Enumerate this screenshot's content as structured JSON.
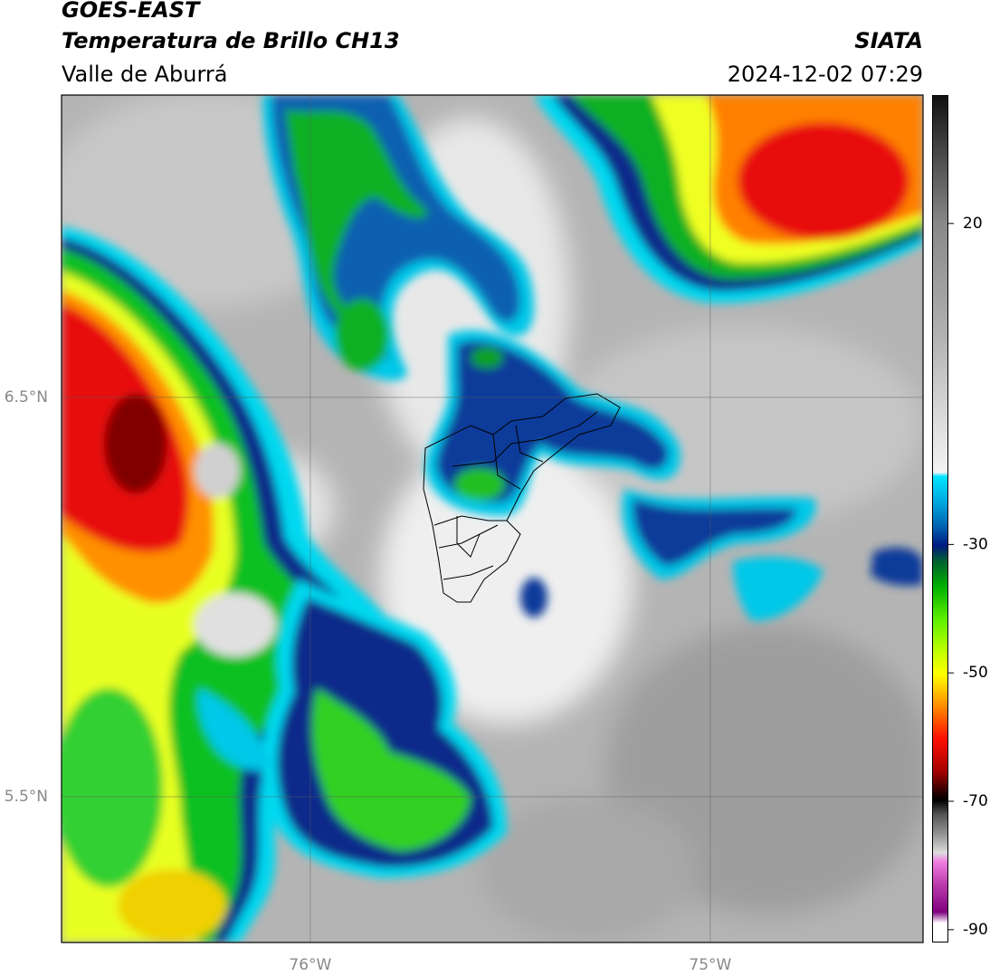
{
  "chart_data": {
    "type": "map",
    "title": "GOES-EAST",
    "subtitle": "Temperatura de Brillo CH13",
    "region": "Valle de Aburrá",
    "source": "SIATA",
    "timestamp": "2024-12-02 07:29",
    "xlim": [
      -76.622,
      -74.468
    ],
    "ylim": [
      5.135,
      7.257
    ],
    "xticks": [
      {
        "value": -76,
        "label": "76°W"
      },
      {
        "value": -75,
        "label": "75°W"
      }
    ],
    "yticks": [
      {
        "value": 5.5,
        "label": "5.5°N"
      },
      {
        "value": 6.5,
        "label": "6.5°N"
      }
    ],
    "grid": true,
    "colorbar": {
      "lim": [
        -92,
        40
      ],
      "ticks": [
        20,
        -30,
        -50,
        -70,
        -90
      ]
    }
  }
}
